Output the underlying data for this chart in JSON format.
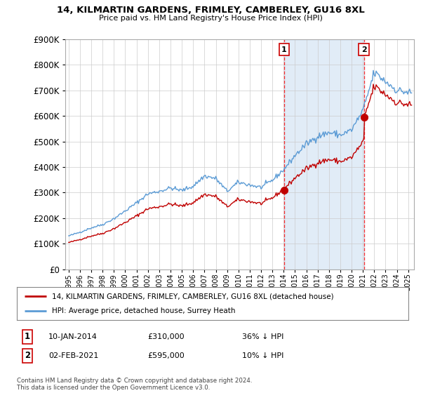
{
  "title": "14, KILMARTIN GARDENS, FRIMLEY, CAMBERLEY, GU16 8XL",
  "subtitle": "Price paid vs. HM Land Registry's House Price Index (HPI)",
  "legend_entry1": "14, KILMARTIN GARDENS, FRIMLEY, CAMBERLEY, GU16 8XL (detached house)",
  "legend_entry2": "HPI: Average price, detached house, Surrey Heath",
  "annotation1_label": "1",
  "annotation1_date": "10-JAN-2014",
  "annotation1_price": "£310,000",
  "annotation1_hpi": "36% ↓ HPI",
  "annotation1_year": 2014.04,
  "annotation1_value": 310000,
  "annotation2_label": "2",
  "annotation2_date": "02-FEB-2021",
  "annotation2_price": "£595,000",
  "annotation2_hpi": "10% ↓ HPI",
  "annotation2_year": 2021.09,
  "annotation2_value": 595000,
  "hpi_color": "#5b9bd5",
  "hpi_fill_color": "#ddeeff",
  "price_color": "#c00000",
  "vline_color": "#ff0000",
  "background_color": "#ffffff",
  "grid_color": "#cccccc",
  "footer": "Contains HM Land Registry data © Crown copyright and database right 2024.\nThis data is licensed under the Open Government Licence v3.0.",
  "ylim": [
    0,
    900000
  ],
  "yticks": [
    0,
    100000,
    200000,
    300000,
    400000,
    500000,
    600000,
    700000,
    800000,
    900000
  ],
  "xlim_start": 1994.7,
  "xlim_end": 2025.5,
  "fig_width": 6.0,
  "fig_height": 5.6,
  "dpi": 100
}
